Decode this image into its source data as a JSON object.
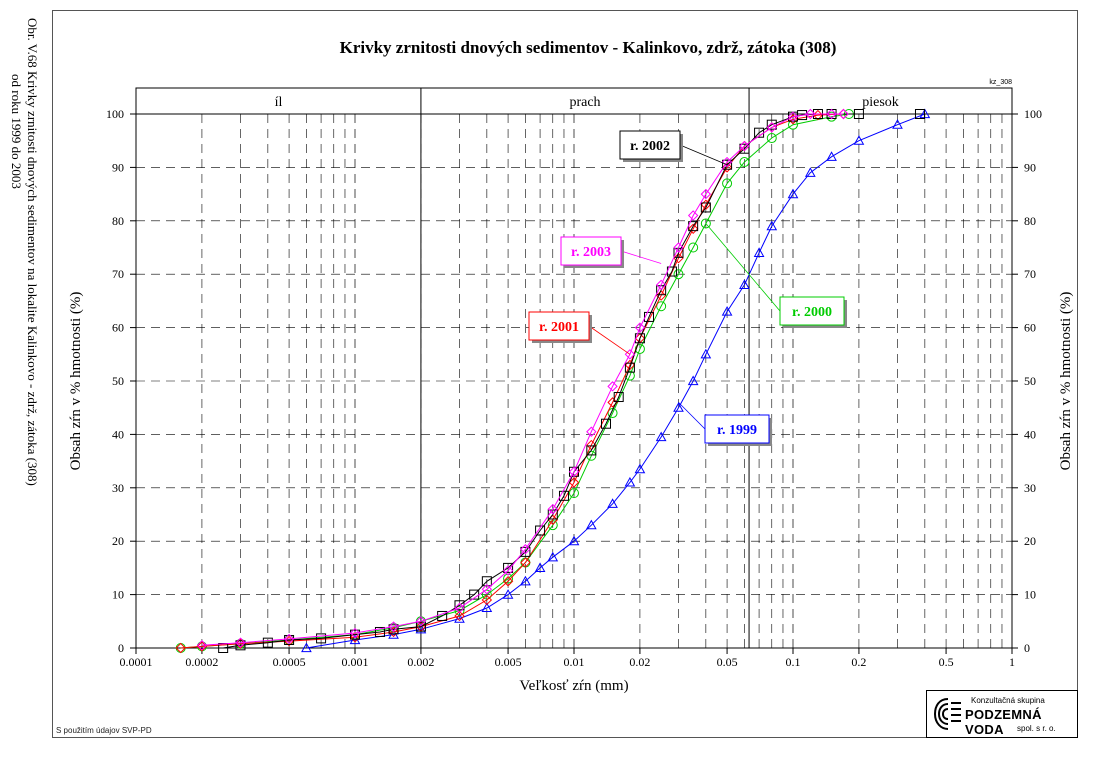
{
  "side_caption": {
    "line1": "Obr. V.68 Krivky zrnitosti dnových sedimentov na lokalite Kalinkovo - zdrž, zátoka (308)",
    "line2": "od roku 1999 do 2003"
  },
  "credit": "S použitím údajov SVP-PD",
  "logo": {
    "top": "Konzultačná skupina",
    "name": "PODZEMNÁ VODA",
    "sub": "spol. s r. o."
  },
  "colors": {
    "r1999": "#0000ff",
    "r2000": "#00cc00",
    "r2001": "#ff0000",
    "r2002": "#000000",
    "r2003": "#ff00ff"
  },
  "chart_data": {
    "type": "line",
    "title": "Krivky zrnitosti dnových sedimentov - Kalinkovo, zdrž, zátoka (308)",
    "code": "kz_308",
    "xlabel": "Veľkosť zŕn (mm)",
    "ylabel": "Obsah zŕn v % hmotnosti (%)",
    "x_scale": "log",
    "xlim": [
      0.0001,
      1
    ],
    "ylim": [
      0,
      100
    ],
    "x_ticks": [
      "0.0001",
      "0.0002",
      "0.0005",
      "0.001",
      "0.002",
      "0.005",
      "0.01",
      "0.02",
      "0.05",
      "0.1",
      "0.2",
      "0.5",
      "1"
    ],
    "y_ticks": [
      "0",
      "10",
      "20",
      "30",
      "40",
      "50",
      "60",
      "70",
      "80",
      "90",
      "100"
    ],
    "grid": true,
    "zones": [
      {
        "label": "íl",
        "from": 0.0001,
        "to": 0.002
      },
      {
        "label": "prach",
        "from": 0.002,
        "to": 0.063
      },
      {
        "label": "piesok",
        "from": 0.063,
        "to": 1
      }
    ],
    "series": [
      {
        "name": "r. 1999",
        "marker": "triangle",
        "color_key": "r1999",
        "x": [
          0.0006,
          0.001,
          0.0015,
          0.002,
          0.003,
          0.004,
          0.005,
          0.006,
          0.007,
          0.008,
          0.01,
          0.012,
          0.015,
          0.018,
          0.02,
          0.025,
          0.03,
          0.035,
          0.04,
          0.05,
          0.06,
          0.07,
          0.08,
          0.1,
          0.12,
          0.15,
          0.2,
          0.3,
          0.4
        ],
        "y": [
          0,
          1.5,
          2.5,
          3.5,
          5.5,
          7.5,
          10,
          12.5,
          15,
          17,
          20,
          23,
          27,
          31,
          33.5,
          39.5,
          45,
          50,
          55,
          63,
          68,
          74,
          79,
          85,
          89,
          92,
          95,
          98,
          100
        ]
      },
      {
        "name": "r. 2000",
        "marker": "circle",
        "color_key": "r2000",
        "x": [
          0.00016,
          0.0002,
          0.0003,
          0.0005,
          0.001,
          0.0015,
          0.002,
          0.003,
          0.004,
          0.005,
          0.006,
          0.008,
          0.01,
          0.012,
          0.015,
          0.018,
          0.02,
          0.025,
          0.03,
          0.035,
          0.04,
          0.05,
          0.06,
          0.08,
          0.1,
          0.15,
          0.18
        ],
        "y": [
          0,
          0.3,
          0.8,
          1.5,
          2.5,
          3.8,
          5,
          7,
          10,
          13,
          16,
          23,
          29,
          36,
          44,
          51,
          56,
          64,
          70,
          75,
          79.5,
          87,
          91,
          95.5,
          98,
          99.5,
          100
        ]
      },
      {
        "name": "r. 2001",
        "marker": "diamond",
        "color_key": "r2001",
        "x": [
          0.00016,
          0.0002,
          0.0003,
          0.0005,
          0.001,
          0.0015,
          0.002,
          0.003,
          0.004,
          0.005,
          0.006,
          0.008,
          0.01,
          0.012,
          0.015,
          0.018,
          0.02,
          0.025,
          0.03,
          0.035,
          0.04,
          0.05,
          0.06,
          0.08,
          0.1,
          0.13,
          0.17
        ],
        "y": [
          0,
          0.3,
          0.8,
          1.3,
          2,
          3,
          4,
          6,
          9,
          12.5,
          16,
          24,
          31,
          38,
          46,
          53,
          58,
          66,
          73,
          78.5,
          83,
          90,
          94,
          97.5,
          99,
          99.8,
          100
        ]
      },
      {
        "name": "r. 2002",
        "marker": "square",
        "color_key": "r2002",
        "x": [
          0.00025,
          0.0003,
          0.0004,
          0.0005,
          0.0007,
          0.001,
          0.0013,
          0.0015,
          0.002,
          0.0025,
          0.003,
          0.0035,
          0.004,
          0.005,
          0.006,
          0.007,
          0.008,
          0.009,
          0.01,
          0.012,
          0.014,
          0.016,
          0.018,
          0.02,
          0.022,
          0.025,
          0.028,
          0.03,
          0.035,
          0.04,
          0.05,
          0.06,
          0.07,
          0.08,
          0.1,
          0.11,
          0.13,
          0.15,
          0.2,
          0.38
        ],
        "y": [
          0,
          0.5,
          1,
          1.5,
          1.8,
          2.5,
          3,
          3.5,
          4,
          6,
          8,
          10,
          12.5,
          15,
          18,
          22,
          25,
          28.5,
          33,
          37,
          42,
          47,
          52.5,
          58,
          62,
          67,
          70.5,
          74,
          79,
          82.5,
          90.5,
          93.5,
          96.5,
          98,
          99.5,
          99.8,
          100,
          100,
          100,
          100
        ]
      },
      {
        "name": "r. 2003",
        "marker": "diamond",
        "color_key": "r2003",
        "x": [
          0.0002,
          0.0003,
          0.0005,
          0.001,
          0.0015,
          0.002,
          0.003,
          0.004,
          0.005,
          0.006,
          0.008,
          0.01,
          0.012,
          0.015,
          0.018,
          0.02,
          0.025,
          0.03,
          0.035,
          0.04,
          0.05,
          0.06,
          0.08,
          0.1,
          0.12,
          0.15,
          0.17
        ],
        "y": [
          0.5,
          1,
          1.7,
          2.8,
          4,
          5,
          7.5,
          11,
          14.5,
          18.5,
          26,
          33,
          40.5,
          49,
          55,
          60,
          68,
          75,
          81,
          85,
          91,
          94,
          97.5,
          99.5,
          100,
          100,
          100
        ]
      }
    ],
    "legend_labels": [
      {
        "text": "r. 2002",
        "color_key": "r2002",
        "anchor_x": 0.05,
        "anchor_y": 90.5
      },
      {
        "text": "r. 2003",
        "color_key": "r2003",
        "anchor_x": 0.025,
        "anchor_y": 72
      },
      {
        "text": "r. 2001",
        "color_key": "r2001",
        "anchor_x": 0.018,
        "anchor_y": 55
      },
      {
        "text": "r. 2000",
        "color_key": "r2000",
        "anchor_x": 0.04,
        "anchor_y": 79.5
      },
      {
        "text": "r. 1999",
        "color_key": "r1999",
        "anchor_x": 0.03,
        "anchor_y": 46
      }
    ]
  }
}
